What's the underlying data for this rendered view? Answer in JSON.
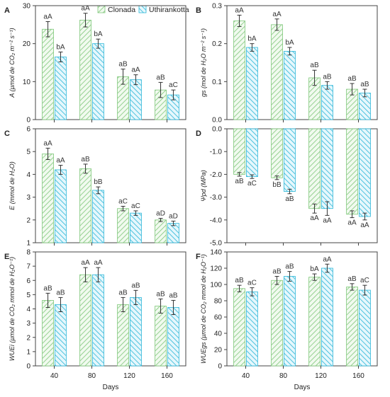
{
  "legend": {
    "series": [
      {
        "name": "Clonada",
        "color": "#7fc77a",
        "fill_id": "hatch-clonada"
      },
      {
        "name": "Uthirankotta",
        "color": "#29b6d8",
        "fill_id": "hatch-uthirankotta"
      }
    ]
  },
  "chart_data": [
    {
      "panel": "A",
      "type": "bar",
      "categories": [
        "40",
        "80",
        "120",
        "160"
      ],
      "ylim": [
        0,
        30
      ],
      "yticks": [
        0,
        10,
        20,
        30
      ],
      "ylabel": "A (µmol de CO₂ m⁻² s⁻¹)",
      "xlabel": "",
      "tick_decimals": 0,
      "series": [
        {
          "name": "Clonada",
          "values": [
            23.8,
            26.2,
            11.3,
            7.8
          ],
          "errors": [
            2.0,
            1.8,
            2.0,
            2.0
          ],
          "labels": [
            "aA",
            "aA",
            "aB",
            "aB"
          ]
        },
        {
          "name": "Uthirankotta",
          "values": [
            16.5,
            20.0,
            10.5,
            6.5
          ],
          "errors": [
            1.3,
            1.2,
            1.3,
            1.3
          ],
          "labels": [
            "bA",
            "bA",
            "aA",
            "aC"
          ]
        }
      ]
    },
    {
      "panel": "B",
      "type": "bar",
      "categories": [
        "40",
        "80",
        "120",
        "160"
      ],
      "ylim": [
        0,
        0.3
      ],
      "yticks": [
        0,
        0.1,
        0.2,
        0.3
      ],
      "ylabel": "gs (mol de H₂O m⁻² s⁻¹)",
      "xlabel": "",
      "tick_decimals": 1,
      "series": [
        {
          "name": "Clonada",
          "values": [
            0.26,
            0.25,
            0.11,
            0.08
          ],
          "errors": [
            0.015,
            0.015,
            0.02,
            0.015
          ],
          "labels": [
            "aA",
            "aA",
            "aB",
            "aB"
          ]
        },
        {
          "name": "Uthirankotta",
          "values": [
            0.19,
            0.18,
            0.09,
            0.07
          ],
          "errors": [
            0.01,
            0.01,
            0.01,
            0.01
          ],
          "labels": [
            "bA",
            "bA",
            "aB",
            "aB"
          ]
        }
      ]
    },
    {
      "panel": "C",
      "type": "bar",
      "categories": [
        "40",
        "80",
        "120",
        "160"
      ],
      "ylim": [
        1,
        6
      ],
      "yticks": [
        1,
        2,
        3,
        4,
        5,
        6
      ],
      "ylabel": "E (mmol de H₂O)",
      "xlabel": "",
      "tick_decimals": 0,
      "series": [
        {
          "name": "Clonada",
          "values": [
            4.9,
            4.25,
            2.5,
            2.0
          ],
          "errors": [
            0.25,
            0.2,
            0.1,
            0.07
          ],
          "labels": [
            "aA",
            "aB",
            "aC",
            "aD"
          ]
        },
        {
          "name": "Uthirankotta",
          "values": [
            4.2,
            3.3,
            2.3,
            1.85
          ],
          "errors": [
            0.2,
            0.15,
            0.1,
            0.1
          ],
          "labels": [
            "aA",
            "bB",
            "aC",
            "aD"
          ]
        }
      ]
    },
    {
      "panel": "D",
      "type": "bar",
      "categories": [
        "40",
        "80",
        "120",
        "160"
      ],
      "ylim": [
        -5,
        0
      ],
      "yticks": [
        0,
        -1,
        -2,
        -3,
        -4,
        -5
      ],
      "ylabel": "Ψpd (MPa)",
      "xlabel": "",
      "tick_decimals": 1,
      "series": [
        {
          "name": "Clonada",
          "values": [
            -2.0,
            -2.15,
            -3.5,
            -3.75
          ],
          "errors": [
            0.08,
            0.08,
            0.2,
            0.15
          ],
          "labels": [
            "aB",
            "bB",
            "aA",
            "aA"
          ]
        },
        {
          "name": "Uthirankotta",
          "values": [
            -2.1,
            -2.75,
            -3.5,
            -3.85
          ],
          "errors": [
            0.08,
            0.1,
            0.3,
            0.15
          ],
          "labels": [
            "aC",
            "aB",
            "aA",
            "aA"
          ]
        }
      ]
    },
    {
      "panel": "E",
      "type": "bar",
      "categories": [
        "40",
        "80",
        "120",
        "160"
      ],
      "ylim": [
        0,
        8
      ],
      "yticks": [
        0,
        1,
        2,
        3,
        4,
        5,
        6,
        7,
        8
      ],
      "ylabel": "WUEi (µmol de CO₂ mmol de H₂O⁻¹)",
      "xlabel": "Days",
      "tick_decimals": 0,
      "series": [
        {
          "name": "Clonada",
          "values": [
            4.6,
            6.4,
            4.3,
            4.2
          ],
          "errors": [
            0.5,
            0.5,
            0.5,
            0.5
          ],
          "labels": [
            "aB",
            "aA",
            "aB",
            "aB"
          ]
        },
        {
          "name": "Uthirankotta",
          "values": [
            4.3,
            6.4,
            4.8,
            4.1
          ],
          "errors": [
            0.5,
            0.5,
            0.5,
            0.5
          ],
          "labels": [
            "aB",
            "aA",
            "aB",
            "aB"
          ]
        }
      ]
    },
    {
      "panel": "F",
      "type": "bar",
      "categories": [
        "40",
        "80",
        "120",
        "160"
      ],
      "ylim": [
        0,
        140
      ],
      "yticks": [
        0,
        20,
        40,
        60,
        80,
        100,
        120,
        140
      ],
      "ylabel": "WUEgs (µmol de CO₂ mmol de H₂O⁻¹)",
      "xlabel": "Days",
      "tick_decimals": 0,
      "series": [
        {
          "name": "Clonada",
          "values": [
            95,
            105,
            109,
            97
          ],
          "errors": [
            4,
            5,
            4,
            4
          ],
          "labels": [
            "aB",
            "aB",
            "bA",
            "aB"
          ]
        },
        {
          "name": "Uthirankotta",
          "values": [
            91,
            110,
            120,
            93
          ],
          "errors": [
            5,
            6,
            5,
            6
          ],
          "labels": [
            "aC",
            "aB",
            "aA",
            "aC"
          ]
        }
      ]
    }
  ]
}
